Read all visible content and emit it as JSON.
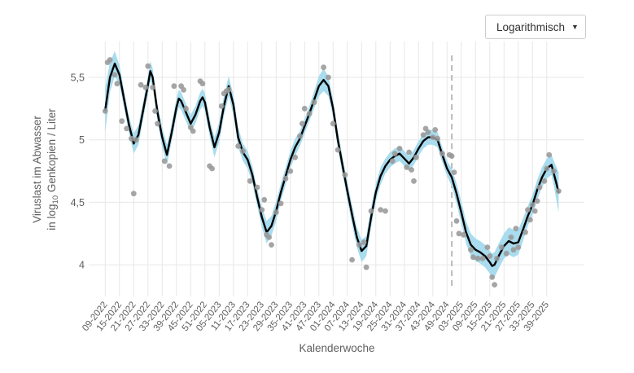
{
  "controls": {
    "scale_dropdown": {
      "value": "Logarithmisch",
      "arrow_icon": "▼"
    }
  },
  "chart_data": {
    "type": "line",
    "title": "",
    "xlabel": "Kalenderwoche",
    "ylabel_line1": "Viruslast im Abwasser",
    "ylabel_line2_pre": "in log",
    "ylabel_line2_sub": "10",
    "ylabel_line2_post": " Genkopien / Liter",
    "x_tick_labels": [
      "09-2022",
      "15-2022",
      "21-2022",
      "27-2022",
      "33-2022",
      "39-2022",
      "45-2022",
      "51-2022",
      "05-2023",
      "11-2023",
      "17-2023",
      "23-2023",
      "29-2023",
      "35-2023",
      "41-2023",
      "47-2023",
      "01-2024",
      "07-2024",
      "13-2024",
      "19-2024",
      "25-2024",
      "31-2024",
      "37-2024",
      "43-2024",
      "49-2024",
      "03-2025",
      "09-2025",
      "15-2025",
      "21-2025",
      "27-2025",
      "33-2025",
      "39-2025"
    ],
    "weeks_per_tick": 6,
    "y_ticks": [
      {
        "value": 4.0,
        "label": "4"
      },
      {
        "value": 4.5,
        "label": "4,5"
      },
      {
        "value": 5.0,
        "label": "5"
      },
      {
        "value": 5.5,
        "label": "5,5"
      }
    ],
    "ylim": [
      3.78,
      5.78
    ],
    "grid": "on",
    "legend": "none",
    "colors": {
      "trend_line": "#000000",
      "confidence_band": "#a8dcee",
      "scatter_points": "#999999",
      "gridline": "#e7e7e7",
      "axis_text": "#606060",
      "forecast_divider": "#ababab"
    },
    "annotations": {
      "dashed_vline_week_index": 146
    },
    "series": [
      {
        "name": "smoothed-trend",
        "type": "line",
        "x": [
          0,
          2,
          4,
          6,
          8,
          10,
          12,
          14,
          16,
          18,
          19,
          20,
          22,
          24,
          26,
          28,
          30,
          31,
          32,
          34,
          36,
          38,
          40,
          41,
          42,
          44,
          46,
          48,
          50,
          52,
          54,
          56,
          58,
          60,
          62,
          64,
          66,
          68,
          70,
          72,
          74,
          76,
          78,
          80,
          82,
          84,
          86,
          88,
          90,
          92,
          94,
          96,
          98,
          100,
          102,
          104,
          106,
          108,
          110,
          112,
          114,
          116,
          118,
          120,
          122,
          124,
          126,
          128,
          130,
          132,
          134,
          136,
          138,
          140,
          142,
          144,
          146,
          148,
          150,
          152,
          154,
          156,
          158,
          160,
          162,
          163,
          164,
          166,
          168,
          170,
          172,
          174,
          176,
          178,
          180,
          182,
          184,
          186,
          188,
          189,
          191
        ],
        "y": [
          5.24,
          5.5,
          5.61,
          5.52,
          5.32,
          5.12,
          4.97,
          5.04,
          5.24,
          5.44,
          5.55,
          5.5,
          5.22,
          5.02,
          4.88,
          5.06,
          5.26,
          5.33,
          5.31,
          5.22,
          5.13,
          5.2,
          5.31,
          5.34,
          5.3,
          5.1,
          4.94,
          5.06,
          5.27,
          5.43,
          5.28,
          5.02,
          4.9,
          4.84,
          4.72,
          4.54,
          4.38,
          4.26,
          4.31,
          4.43,
          4.58,
          4.71,
          4.84,
          4.94,
          5.01,
          5.11,
          5.21,
          5.32,
          5.43,
          5.48,
          5.43,
          5.25,
          5.0,
          4.79,
          4.59,
          4.4,
          4.22,
          4.11,
          4.15,
          4.38,
          4.58,
          4.71,
          4.79,
          4.84,
          4.87,
          4.89,
          4.85,
          4.81,
          4.86,
          4.93,
          4.99,
          5.02,
          5.02,
          5.0,
          4.88,
          4.77,
          4.7,
          4.57,
          4.42,
          4.26,
          4.16,
          4.12,
          4.1,
          4.07,
          4.02,
          3.99,
          4.0,
          4.08,
          4.15,
          4.19,
          4.17,
          4.18,
          4.28,
          4.39,
          4.48,
          4.6,
          4.7,
          4.77,
          4.8,
          4.73,
          4.58
        ],
        "band_half_width": [
          0.18,
          0.12,
          0.1,
          0.08,
          0.07,
          0.07,
          0.08,
          0.08,
          0.07,
          0.07,
          0.08,
          0.07,
          0.07,
          0.08,
          0.08,
          0.07,
          0.07,
          0.07,
          0.07,
          0.07,
          0.07,
          0.07,
          0.07,
          0.07,
          0.07,
          0.07,
          0.08,
          0.08,
          0.08,
          0.08,
          0.08,
          0.08,
          0.07,
          0.07,
          0.07,
          0.07,
          0.08,
          0.09,
          0.08,
          0.08,
          0.07,
          0.07,
          0.07,
          0.07,
          0.06,
          0.06,
          0.06,
          0.07,
          0.08,
          0.09,
          0.08,
          0.07,
          0.07,
          0.07,
          0.07,
          0.08,
          0.08,
          0.09,
          0.08,
          0.08,
          0.07,
          0.07,
          0.06,
          0.06,
          0.06,
          0.06,
          0.06,
          0.06,
          0.06,
          0.06,
          0.06,
          0.06,
          0.06,
          0.06,
          0.06,
          0.06,
          0.07,
          0.08,
          0.09,
          0.09,
          0.09,
          0.09,
          0.09,
          0.09,
          0.09,
          0.1,
          0.1,
          0.1,
          0.1,
          0.11,
          0.11,
          0.1,
          0.09,
          0.08,
          0.08,
          0.08,
          0.08,
          0.08,
          0.08,
          0.1,
          0.16
        ]
      },
      {
        "name": "weekly-measurements",
        "type": "scatter",
        "points": [
          [
            0,
            5.23
          ],
          [
            1,
            5.62
          ],
          [
            2,
            5.64
          ],
          [
            4,
            5.52
          ],
          [
            5,
            5.45
          ],
          [
            7,
            5.15
          ],
          [
            9,
            5.09
          ],
          [
            11,
            5.01
          ],
          [
            12,
            4.57
          ],
          [
            13,
            5.0
          ],
          [
            15,
            5.44
          ],
          [
            17,
            5.42
          ],
          [
            18,
            5.59
          ],
          [
            20,
            5.42
          ],
          [
            21,
            5.23
          ],
          [
            22,
            5.13
          ],
          [
            25,
            4.83
          ],
          [
            27,
            4.79
          ],
          [
            29,
            5.43
          ],
          [
            32,
            5.43
          ],
          [
            33,
            5.4
          ],
          [
            34,
            5.25
          ],
          [
            36,
            5.1
          ],
          [
            37,
            5.07
          ],
          [
            40,
            5.47
          ],
          [
            41,
            5.45
          ],
          [
            44,
            4.79
          ],
          [
            45,
            4.77
          ],
          [
            49,
            5.27
          ],
          [
            50,
            5.37
          ],
          [
            51,
            5.39
          ],
          [
            52,
            5.4
          ],
          [
            56,
            4.95
          ],
          [
            58,
            4.91
          ],
          [
            61,
            4.67
          ],
          [
            64,
            4.62
          ],
          [
            66,
            4.44
          ],
          [
            67,
            4.52
          ],
          [
            68,
            4.24
          ],
          [
            69,
            4.22
          ],
          [
            70,
            4.16
          ],
          [
            72,
            4.42
          ],
          [
            74,
            4.49
          ],
          [
            76,
            4.69
          ],
          [
            78,
            4.75
          ],
          [
            80,
            4.86
          ],
          [
            82,
            5.03
          ],
          [
            83,
            5.13
          ],
          [
            84,
            5.25
          ],
          [
            86,
            5.21
          ],
          [
            88,
            5.3
          ],
          [
            92,
            5.58
          ],
          [
            94,
            5.5
          ],
          [
            96,
            5.13
          ],
          [
            98,
            4.92
          ],
          [
            101,
            4.72
          ],
          [
            104,
            4.04
          ],
          [
            107,
            4.16
          ],
          [
            109,
            4.18
          ],
          [
            110,
            3.98
          ],
          [
            112,
            4.43
          ],
          [
            116,
            4.44
          ],
          [
            118,
            4.43
          ],
          [
            121,
            4.83
          ],
          [
            122,
            4.89
          ],
          [
            124,
            4.93
          ],
          [
            127,
            4.78
          ],
          [
            128,
            4.9
          ],
          [
            129,
            4.76
          ],
          [
            130,
            4.67
          ],
          [
            131,
            4.86
          ],
          [
            134,
            5.04
          ],
          [
            135,
            5.09
          ],
          [
            136,
            5.06
          ],
          [
            138,
            5.02
          ],
          [
            139,
            5.08
          ],
          [
            140,
            5.01
          ],
          [
            142,
            4.89
          ],
          [
            145,
            4.88
          ],
          [
            146,
            4.87
          ],
          [
            147,
            4.74
          ],
          [
            148,
            4.35
          ],
          [
            149,
            4.25
          ],
          [
            151,
            4.24
          ],
          [
            154,
            4.12
          ],
          [
            155,
            4.06
          ],
          [
            157,
            4.05
          ],
          [
            159,
            4.05
          ],
          [
            161,
            4.14
          ],
          [
            162,
            4.07
          ],
          [
            163,
            3.9
          ],
          [
            164,
            3.84
          ],
          [
            165,
            4.05
          ],
          [
            167,
            4.14
          ],
          [
            169,
            4.09
          ],
          [
            171,
            4.22
          ],
          [
            172,
            4.12
          ],
          [
            173,
            4.29
          ],
          [
            174,
            4.14
          ],
          [
            177,
            4.26
          ],
          [
            178,
            4.44
          ],
          [
            179,
            4.36
          ],
          [
            180,
            4.48
          ],
          [
            181,
            4.43
          ],
          [
            182,
            4.51
          ],
          [
            183,
            4.62
          ],
          [
            185,
            4.67
          ],
          [
            186,
            4.77
          ],
          [
            187,
            4.88
          ],
          [
            189,
            4.75
          ],
          [
            191,
            4.59
          ]
        ]
      }
    ]
  }
}
